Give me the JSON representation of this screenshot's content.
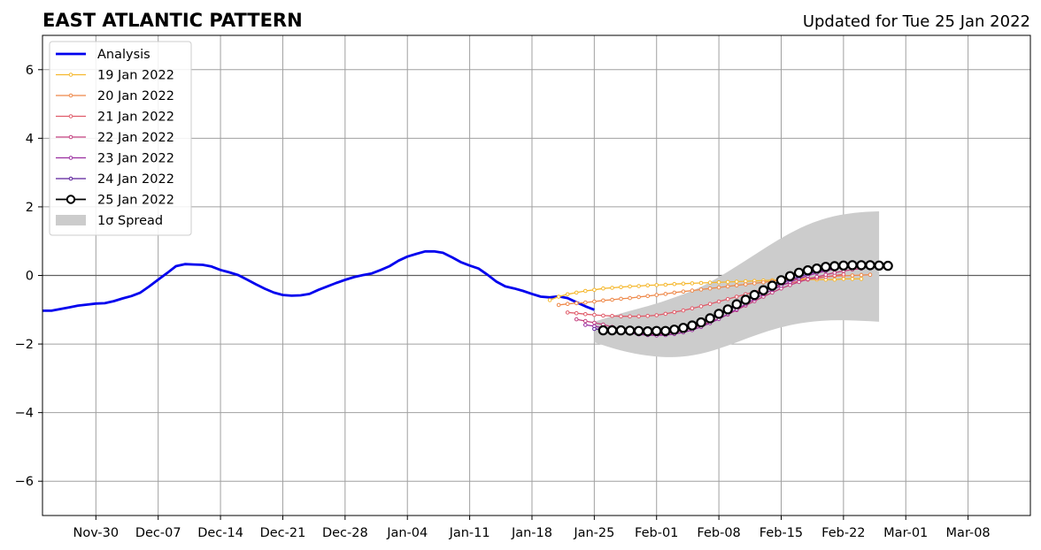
{
  "chart_data": {
    "type": "line",
    "title": "EAST ATLANTIC PATTERN",
    "subtitle": "Updated for Tue 25 Jan 2022",
    "xlabel": "",
    "ylabel": "",
    "ylim": [
      -7,
      7
    ],
    "xlim": [
      "2021-11-24",
      "2022-03-15"
    ],
    "grid": true,
    "zero_line": true,
    "legend_position": "upper-left",
    "x_ticks": [
      "Nov-30",
      "Dec-07",
      "Dec-14",
      "Dec-21",
      "Dec-28",
      "Jan-04",
      "Jan-11",
      "Jan-18",
      "Jan-25",
      "Feb-01",
      "Feb-08",
      "Feb-15",
      "Feb-22",
      "Mar-01",
      "Mar-08"
    ],
    "x_tick_dates": [
      "2021-11-30",
      "2021-12-07",
      "2021-12-14",
      "2021-12-21",
      "2021-12-28",
      "2022-01-04",
      "2022-01-11",
      "2022-01-18",
      "2022-01-25",
      "2022-02-01",
      "2022-02-08",
      "2022-02-15",
      "2022-02-22",
      "2022-03-01",
      "2022-03-08"
    ],
    "y_ticks": [
      -6,
      -4,
      -2,
      0,
      2,
      4,
      6
    ],
    "y_tick_labels": [
      "−6",
      "−4",
      "−2",
      "0",
      "2",
      "4",
      "6"
    ],
    "spread": {
      "label": "1σ Spread",
      "color": "#cccccc",
      "x": [
        "2022-01-25",
        "2022-01-28",
        "2022-01-31",
        "2022-02-03",
        "2022-02-06",
        "2022-02-09",
        "2022-02-12",
        "2022-02-15",
        "2022-02-18",
        "2022-02-21",
        "2022-02-24",
        "2022-02-26"
      ],
      "upper": [
        -1.35,
        -1.1,
        -0.9,
        -0.65,
        -0.35,
        0.1,
        0.6,
        1.1,
        1.5,
        1.75,
        1.85,
        1.87
      ],
      "lower": [
        -1.95,
        -2.2,
        -2.35,
        -2.4,
        -2.3,
        -2.05,
        -1.75,
        -1.5,
        -1.35,
        -1.3,
        -1.32,
        -1.35
      ]
    },
    "series": [
      {
        "name": "Analysis",
        "color": "#0000ee",
        "style": "line",
        "x": [
          "2021-11-24",
          "2021-11-25",
          "2021-11-26",
          "2021-11-27",
          "2021-11-28",
          "2021-11-29",
          "2021-11-30",
          "2021-12-01",
          "2021-12-02",
          "2021-12-03",
          "2021-12-04",
          "2021-12-05",
          "2021-12-06",
          "2021-12-07",
          "2021-12-08",
          "2021-12-09",
          "2021-12-10",
          "2021-12-11",
          "2021-12-12",
          "2021-12-13",
          "2021-12-14",
          "2021-12-15",
          "2021-12-16",
          "2021-12-17",
          "2021-12-18",
          "2021-12-19",
          "2021-12-20",
          "2021-12-21",
          "2021-12-22",
          "2021-12-23",
          "2021-12-24",
          "2021-12-25",
          "2021-12-26",
          "2021-12-27",
          "2021-12-28",
          "2021-12-29",
          "2021-12-30",
          "2021-12-31",
          "2022-01-01",
          "2022-01-02",
          "2022-01-03",
          "2022-01-04",
          "2022-01-05",
          "2022-01-06",
          "2022-01-07",
          "2022-01-08",
          "2022-01-09",
          "2022-01-10",
          "2022-01-11",
          "2022-01-12",
          "2022-01-13",
          "2022-01-14",
          "2022-01-15",
          "2022-01-16",
          "2022-01-17",
          "2022-01-18",
          "2022-01-19",
          "2022-01-20",
          "2022-01-21",
          "2022-01-22",
          "2022-01-23",
          "2022-01-24",
          "2022-01-25"
        ],
        "values": [
          -1.03,
          -1.03,
          -0.98,
          -0.93,
          -0.88,
          -0.85,
          -0.82,
          -0.81,
          -0.75,
          -0.67,
          -0.6,
          -0.5,
          -0.32,
          -0.12,
          0.07,
          0.27,
          0.33,
          0.32,
          0.31,
          0.26,
          0.16,
          0.09,
          0.01,
          -0.12,
          -0.26,
          -0.39,
          -0.5,
          -0.57,
          -0.59,
          -0.58,
          -0.54,
          -0.42,
          -0.32,
          -0.22,
          -0.13,
          -0.05,
          0.01,
          0.06,
          0.16,
          0.27,
          0.43,
          0.55,
          0.63,
          0.7,
          0.7,
          0.66,
          0.53,
          0.39,
          0.29,
          0.2,
          0.02,
          -0.18,
          -0.32,
          -0.38,
          -0.45,
          -0.54,
          -0.62,
          -0.64,
          -0.61,
          -0.66,
          -0.78,
          -0.9,
          -1.0
        ]
      },
      {
        "name": "19 Jan 2022",
        "color": "#f5b82e",
        "style": "small-marker",
        "x": [
          "2022-01-20",
          "2022-01-21",
          "2022-01-22",
          "2022-01-23",
          "2022-01-24",
          "2022-01-25",
          "2022-01-26",
          "2022-01-27",
          "2022-01-28",
          "2022-01-29",
          "2022-01-30",
          "2022-01-31",
          "2022-02-01",
          "2022-02-02",
          "2022-02-03",
          "2022-02-04",
          "2022-02-05",
          "2022-02-06",
          "2022-02-07",
          "2022-02-08",
          "2022-02-09",
          "2022-02-10",
          "2022-02-11",
          "2022-02-12",
          "2022-02-13",
          "2022-02-14",
          "2022-02-15",
          "2022-02-16",
          "2022-02-17",
          "2022-02-18",
          "2022-02-19",
          "2022-02-20",
          "2022-02-21",
          "2022-02-22",
          "2022-02-23",
          "2022-02-24"
        ],
        "values": [
          -0.72,
          -0.62,
          -0.55,
          -0.5,
          -0.45,
          -0.42,
          -0.38,
          -0.36,
          -0.34,
          -0.32,
          -0.31,
          -0.29,
          -0.28,
          -0.27,
          -0.25,
          -0.24,
          -0.23,
          -0.22,
          -0.21,
          -0.2,
          -0.19,
          -0.18,
          -0.17,
          -0.16,
          -0.15,
          -0.14,
          -0.13,
          -0.12,
          -0.12,
          -0.12,
          -0.12,
          -0.12,
          -0.12,
          -0.1,
          -0.1,
          -0.1
        ]
      },
      {
        "name": "20 Jan 2022",
        "color": "#ee8849",
        "style": "small-marker",
        "x": [
          "2022-01-21",
          "2022-01-22",
          "2022-01-23",
          "2022-01-24",
          "2022-01-25",
          "2022-01-26",
          "2022-01-27",
          "2022-01-28",
          "2022-01-29",
          "2022-01-30",
          "2022-01-31",
          "2022-02-01",
          "2022-02-02",
          "2022-02-03",
          "2022-02-04",
          "2022-02-05",
          "2022-02-06",
          "2022-02-07",
          "2022-02-08",
          "2022-02-09",
          "2022-02-10",
          "2022-02-11",
          "2022-02-12",
          "2022-02-13",
          "2022-02-14",
          "2022-02-15",
          "2022-02-16",
          "2022-02-17",
          "2022-02-18",
          "2022-02-19",
          "2022-02-20",
          "2022-02-21",
          "2022-02-22",
          "2022-02-23",
          "2022-02-24",
          "2022-02-25"
        ],
        "values": [
          -0.86,
          -0.83,
          -0.81,
          -0.79,
          -0.76,
          -0.73,
          -0.71,
          -0.68,
          -0.66,
          -0.63,
          -0.6,
          -0.57,
          -0.54,
          -0.5,
          -0.47,
          -0.44,
          -0.41,
          -0.38,
          -0.35,
          -0.32,
          -0.29,
          -0.26,
          -0.23,
          -0.2,
          -0.17,
          -0.14,
          -0.12,
          -0.1,
          -0.08,
          -0.06,
          -0.04,
          -0.02,
          -0.01,
          0.0,
          0.01,
          0.02
        ]
      },
      {
        "name": "21 Jan 2022",
        "color": "#e05c6a",
        "style": "small-marker",
        "x": [
          "2022-01-22",
          "2022-01-23",
          "2022-01-24",
          "2022-01-25",
          "2022-01-26",
          "2022-01-27",
          "2022-01-28",
          "2022-01-29",
          "2022-01-30",
          "2022-01-31",
          "2022-02-01",
          "2022-02-02",
          "2022-02-03",
          "2022-02-04",
          "2022-02-05",
          "2022-02-06",
          "2022-02-07",
          "2022-02-08",
          "2022-02-09",
          "2022-02-10",
          "2022-02-11",
          "2022-02-12",
          "2022-02-13",
          "2022-02-14",
          "2022-02-15",
          "2022-02-16",
          "2022-02-17",
          "2022-02-18",
          "2022-02-19",
          "2022-02-20",
          "2022-02-21",
          "2022-02-22"
        ],
        "values": [
          -1.08,
          -1.1,
          -1.13,
          -1.15,
          -1.17,
          -1.18,
          -1.19,
          -1.19,
          -1.19,
          -1.18,
          -1.16,
          -1.12,
          -1.07,
          -1.02,
          -0.96,
          -0.9,
          -0.83,
          -0.76,
          -0.69,
          -0.62,
          -0.55,
          -0.48,
          -0.41,
          -0.35,
          -0.28,
          -0.22,
          -0.17,
          -0.12,
          -0.08,
          -0.04,
          0.0,
          0.03
        ]
      },
      {
        "name": "22 Jan 2022",
        "color": "#c4417f",
        "style": "small-marker",
        "x": [
          "2022-01-23",
          "2022-01-24",
          "2022-01-25",
          "2022-01-26",
          "2022-01-27",
          "2022-01-28",
          "2022-01-29",
          "2022-01-30",
          "2022-01-31",
          "2022-02-01",
          "2022-02-02",
          "2022-02-03",
          "2022-02-04",
          "2022-02-05",
          "2022-02-06",
          "2022-02-07",
          "2022-02-08",
          "2022-02-09",
          "2022-02-10",
          "2022-02-11",
          "2022-02-12",
          "2022-02-13",
          "2022-02-14",
          "2022-02-15",
          "2022-02-16",
          "2022-02-17",
          "2022-02-18",
          "2022-02-19",
          "2022-02-20",
          "2022-02-21",
          "2022-02-22",
          "2022-02-23",
          "2022-02-24"
        ],
        "values": [
          -1.28,
          -1.33,
          -1.38,
          -1.43,
          -1.5,
          -1.57,
          -1.63,
          -1.68,
          -1.71,
          -1.72,
          -1.7,
          -1.66,
          -1.6,
          -1.53,
          -1.45,
          -1.36,
          -1.26,
          -1.14,
          -1.01,
          -0.88,
          -0.75,
          -0.62,
          -0.5,
          -0.38,
          -0.28,
          -0.19,
          -0.11,
          -0.04,
          0.02,
          0.08,
          0.13,
          0.17,
          0.2
        ]
      },
      {
        "name": "23 Jan 2022",
        "color": "#9a2d9f",
        "style": "small-marker",
        "x": [
          "2022-01-24",
          "2022-01-25",
          "2022-01-26",
          "2022-01-27",
          "2022-01-28",
          "2022-01-29",
          "2022-01-30",
          "2022-01-31",
          "2022-02-01",
          "2022-02-02",
          "2022-02-03",
          "2022-02-04",
          "2022-02-05",
          "2022-02-06",
          "2022-02-07",
          "2022-02-08",
          "2022-02-09",
          "2022-02-10",
          "2022-02-11",
          "2022-02-12",
          "2022-02-13",
          "2022-02-14",
          "2022-02-15",
          "2022-02-16",
          "2022-02-17",
          "2022-02-18",
          "2022-02-19",
          "2022-02-20",
          "2022-02-21",
          "2022-02-22",
          "2022-02-23",
          "2022-02-24",
          "2022-02-25"
        ],
        "values": [
          -1.44,
          -1.48,
          -1.53,
          -1.58,
          -1.63,
          -1.68,
          -1.72,
          -1.74,
          -1.75,
          -1.74,
          -1.71,
          -1.66,
          -1.59,
          -1.5,
          -1.39,
          -1.27,
          -1.13,
          -0.99,
          -0.84,
          -0.69,
          -0.55,
          -0.42,
          -0.3,
          -0.19,
          -0.09,
          -0.01,
          0.07,
          0.13,
          0.19,
          0.24,
          0.28,
          0.31,
          0.33
        ]
      },
      {
        "name": "24 Jan 2022",
        "color": "#5b1f9a",
        "style": "small-marker",
        "x": [
          "2022-01-25",
          "2022-01-26",
          "2022-01-27",
          "2022-01-28",
          "2022-01-29",
          "2022-01-30",
          "2022-01-31",
          "2022-02-01",
          "2022-02-02",
          "2022-02-03",
          "2022-02-04",
          "2022-02-05",
          "2022-02-06",
          "2022-02-07",
          "2022-02-08",
          "2022-02-09",
          "2022-02-10",
          "2022-02-11",
          "2022-02-12",
          "2022-02-13",
          "2022-02-14",
          "2022-02-15",
          "2022-02-16",
          "2022-02-17",
          "2022-02-18",
          "2022-02-19",
          "2022-02-20",
          "2022-02-21",
          "2022-02-22",
          "2022-02-23",
          "2022-02-24",
          "2022-02-25",
          "2022-02-26"
        ],
        "values": [
          -1.56,
          -1.58,
          -1.6,
          -1.62,
          -1.64,
          -1.66,
          -1.67,
          -1.67,
          -1.65,
          -1.61,
          -1.55,
          -1.47,
          -1.38,
          -1.27,
          -1.15,
          -1.02,
          -0.88,
          -0.74,
          -0.6,
          -0.47,
          -0.35,
          -0.23,
          -0.13,
          -0.04,
          0.04,
          0.11,
          0.17,
          0.22,
          0.26,
          0.29,
          0.31,
          0.32,
          0.32
        ]
      },
      {
        "name": "25 Jan 2022",
        "color": "#000000",
        "style": "large-marker",
        "x": [
          "2022-01-26",
          "2022-01-27",
          "2022-01-28",
          "2022-01-29",
          "2022-01-30",
          "2022-01-31",
          "2022-02-01",
          "2022-02-02",
          "2022-02-03",
          "2022-02-04",
          "2022-02-05",
          "2022-02-06",
          "2022-02-07",
          "2022-02-08",
          "2022-02-09",
          "2022-02-10",
          "2022-02-11",
          "2022-02-12",
          "2022-02-13",
          "2022-02-14",
          "2022-02-15",
          "2022-02-16",
          "2022-02-17",
          "2022-02-18",
          "2022-02-19",
          "2022-02-20",
          "2022-02-21",
          "2022-02-22",
          "2022-02-23",
          "2022-02-24",
          "2022-02-25",
          "2022-02-26",
          "2022-02-27"
        ],
        "values": [
          -1.6,
          -1.6,
          -1.6,
          -1.61,
          -1.62,
          -1.63,
          -1.62,
          -1.62,
          -1.58,
          -1.53,
          -1.46,
          -1.37,
          -1.25,
          -1.12,
          -0.99,
          -0.84,
          -0.71,
          -0.57,
          -0.43,
          -0.3,
          -0.14,
          -0.02,
          0.08,
          0.15,
          0.2,
          0.25,
          0.27,
          0.29,
          0.3,
          0.3,
          0.3,
          0.29,
          0.28
        ]
      }
    ]
  }
}
